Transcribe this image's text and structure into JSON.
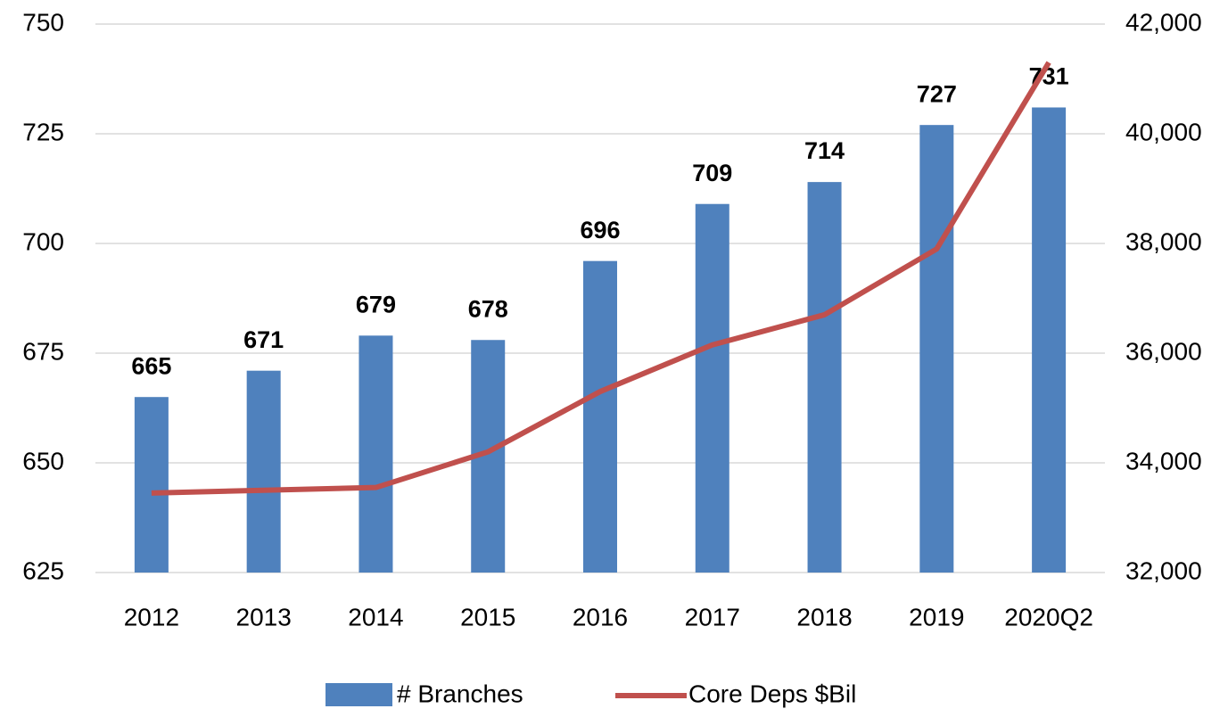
{
  "chart_data": {
    "type": "bar",
    "categories": [
      "2012",
      "2013",
      "2014",
      "2015",
      "2016",
      "2017",
      "2018",
      "2019",
      "2020Q2"
    ],
    "series": [
      {
        "name": "# Branches",
        "type": "bar",
        "color": "#4f81bd",
        "values": [
          665,
          671,
          679,
          678,
          696,
          709,
          714,
          727,
          731
        ]
      },
      {
        "name": "Core Deps $Bil",
        "type": "line",
        "axis": "y2",
        "color": "#c0504d",
        "values": [
          33450,
          33500,
          33550,
          34200,
          35300,
          36150,
          36700,
          37900,
          41300
        ]
      }
    ],
    "ylim": [
      625,
      750
    ],
    "yticks": [
      625,
      650,
      675,
      700,
      725,
      750
    ],
    "y2lim": [
      32000,
      42000
    ],
    "y2ticks": [
      {
        "value": 32000,
        "label": "32,000"
      },
      {
        "value": 34000,
        "label": "34,000"
      },
      {
        "value": 36000,
        "label": "36,000"
      },
      {
        "value": 38000,
        "label": "38,000"
      },
      {
        "value": 40000,
        "label": "40,000"
      },
      {
        "value": 42000,
        "label": "42,000"
      }
    ],
    "grid": true,
    "legend": "bottom"
  }
}
